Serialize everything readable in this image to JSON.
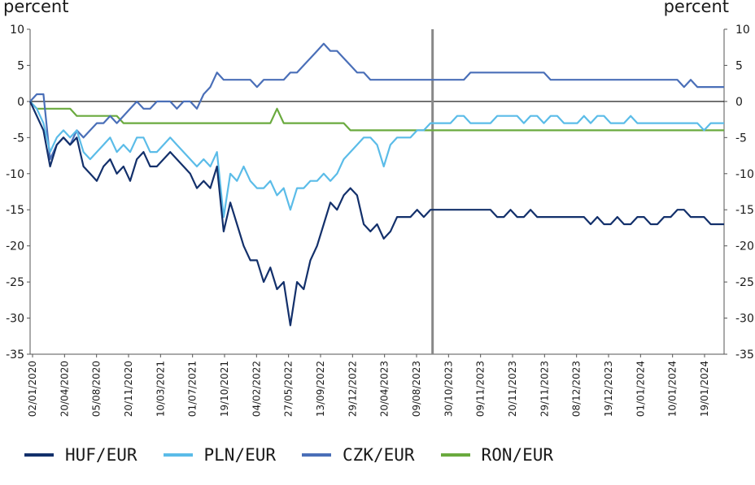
{
  "chart_data": {
    "type": "line",
    "left_unit": "percent",
    "right_unit": "percent",
    "ylim": [
      -35,
      10
    ],
    "y_ticks": [
      10,
      5,
      0,
      -5,
      -10,
      -15,
      -20,
      -25,
      -30,
      -35
    ],
    "right_y_ticks": [
      "10",
      "5",
      "0",
      "-5",
      "-10",
      "-15",
      "-20",
      "-25",
      "-30",
      "-35"
    ],
    "x_tick_labels": [
      "02/01/2020",
      "20/04/2020",
      "05/08/2020",
      "20/11/2020",
      "10/03/2021",
      "01/07/2021",
      "19/10/2021",
      "04/02/2022",
      "27/05/2022",
      "13/09/2022",
      "29/12/2022",
      "20/04/2023",
      "09/08/2023",
      "30/10/2023",
      "09/11/2023",
      "20/11/2023",
      "29/11/2023",
      "08/12/2023",
      "19/12/2023",
      "01/01/2024",
      "10/01/2024",
      "19/01/2024"
    ],
    "axis_break_after": "09/08/2023",
    "grid": false,
    "legend_position": "bottom",
    "series": [
      {
        "name": "HUF/EUR",
        "color": "#13306b",
        "values": [
          0,
          -2,
          -4,
          -9,
          -6,
          -5,
          -6,
          -5,
          -9,
          -10,
          -11,
          -9,
          -8,
          -10,
          -9,
          -11,
          -8,
          -7,
          -9,
          -9,
          -8,
          -7,
          -8,
          -9,
          -10,
          -12,
          -11,
          -12,
          -9,
          -18,
          -14,
          -17,
          -20,
          -22,
          -22,
          -25,
          -23,
          -26,
          -25,
          -31,
          -25,
          -26,
          -22,
          -20,
          -17,
          -14,
          -15,
          -13,
          -12,
          -13,
          -17,
          -18,
          -17,
          -19,
          -18,
          -16,
          -16,
          -16,
          -15,
          -16,
          -15,
          -15,
          -15,
          -15,
          -15,
          -15,
          -15,
          -15,
          -15,
          -15,
          -16,
          -16,
          -15,
          -16,
          -16,
          -15,
          -16,
          -16,
          -16,
          -16,
          -16,
          -16,
          -16,
          -16,
          -17,
          -16,
          -17,
          -17,
          -16,
          -17,
          -17,
          -16,
          -16,
          -17,
          -17,
          -16,
          -16,
          -15,
          -15,
          -16,
          -16,
          -16,
          -17,
          -17,
          -17
        ]
      },
      {
        "name": "PLN/EUR",
        "color": "#5bbce8",
        "values": [
          0,
          -1,
          -3,
          -7,
          -5,
          -4,
          -5,
          -4,
          -7,
          -8,
          -7,
          -6,
          -5,
          -7,
          -6,
          -7,
          -5,
          -5,
          -7,
          -7,
          -6,
          -5,
          -6,
          -7,
          -8,
          -9,
          -8,
          -9,
          -7,
          -16,
          -10,
          -11,
          -9,
          -11,
          -12,
          -12,
          -11,
          -13,
          -12,
          -15,
          -12,
          -12,
          -11,
          -11,
          -10,
          -11,
          -10,
          -8,
          -7,
          -6,
          -5,
          -5,
          -6,
          -9,
          -6,
          -5,
          -5,
          -5,
          -4,
          -4,
          -3,
          -3,
          -3,
          -3,
          -2,
          -2,
          -3,
          -3,
          -3,
          -3,
          -2,
          -2,
          -2,
          -2,
          -3,
          -2,
          -2,
          -3,
          -2,
          -2,
          -3,
          -3,
          -3,
          -2,
          -3,
          -2,
          -2,
          -3,
          -3,
          -3,
          -2,
          -3,
          -3,
          -3,
          -3,
          -3,
          -3,
          -3,
          -3,
          -3,
          -3,
          -4,
          -3,
          -3,
          -3
        ]
      },
      {
        "name": "CZK/EUR",
        "color": "#4a6fb8",
        "values": [
          0,
          1,
          1,
          -8,
          -6,
          -5,
          -6,
          -4,
          -5,
          -4,
          -3,
          -3,
          -2,
          -3,
          -2,
          -1,
          0,
          -1,
          -1,
          0,
          0,
          0,
          -1,
          0,
          0,
          -1,
          1,
          2,
          4,
          3,
          3,
          3,
          3,
          3,
          2,
          3,
          3,
          3,
          3,
          4,
          4,
          5,
          6,
          7,
          8,
          7,
          7,
          6,
          5,
          4,
          4,
          3,
          3,
          3,
          3,
          3,
          3,
          3,
          3,
          3,
          3,
          3,
          3,
          3,
          3,
          3,
          4,
          4,
          4,
          4,
          4,
          4,
          4,
          4,
          4,
          4,
          4,
          4,
          3,
          3,
          3,
          3,
          3,
          3,
          3,
          3,
          3,
          3,
          3,
          3,
          3,
          3,
          3,
          3,
          3,
          3,
          3,
          3,
          2,
          3,
          2,
          2,
          2,
          2,
          2
        ]
      },
      {
        "name": "RON/EUR",
        "color": "#6aaa3e",
        "values": [
          0,
          -1,
          -1,
          -1,
          -1,
          -1,
          -1,
          -2,
          -2,
          -2,
          -2,
          -2,
          -2,
          -2,
          -3,
          -3,
          -3,
          -3,
          -3,
          -3,
          -3,
          -3,
          -3,
          -3,
          -3,
          -3,
          -3,
          -3,
          -3,
          -3,
          -3,
          -3,
          -3,
          -3,
          -3,
          -3,
          -3,
          -1,
          -3,
          -3,
          -3,
          -3,
          -3,
          -3,
          -3,
          -3,
          -3,
          -3,
          -4,
          -4,
          -4,
          -4,
          -4,
          -4,
          -4,
          -4,
          -4,
          -4,
          -4,
          -4,
          -4,
          -4,
          -4,
          -4,
          -4,
          -4,
          -4,
          -4,
          -4,
          -4,
          -4,
          -4,
          -4,
          -4,
          -4,
          -4,
          -4,
          -4,
          -4,
          -4,
          -4,
          -4,
          -4,
          -4,
          -4,
          -4,
          -4,
          -4,
          -4,
          -4,
          -4,
          -4,
          -4,
          -4,
          -4,
          -4,
          -4,
          -4,
          -4,
          -4,
          -4,
          -4,
          -4,
          -4,
          -4
        ]
      }
    ]
  }
}
